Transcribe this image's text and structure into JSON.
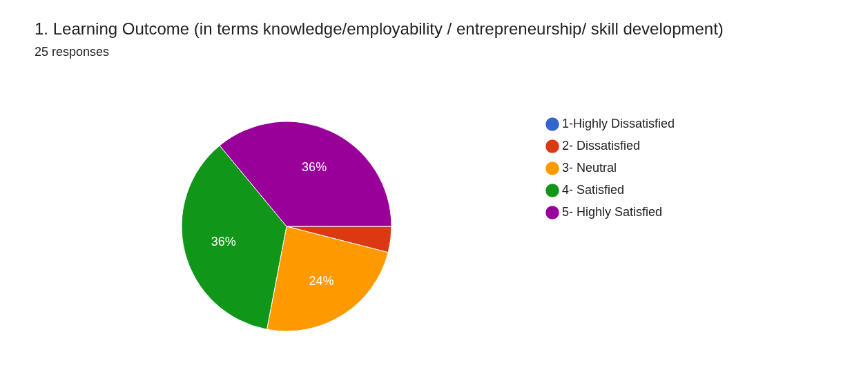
{
  "chart_data": {
    "type": "pie",
    "title": "1. Learning Outcome (in terms knowledge/employability / entrepreneurship/ skill development)",
    "subtitle": "25 responses",
    "categories": [
      "1-Highly Dissatisfied",
      "2- Dissatisfied",
      "3- Neutral",
      "4- Satisfied",
      "5- Highly Satisfied"
    ],
    "values": [
      0,
      4,
      24,
      36,
      36
    ],
    "colors": [
      "#3366cc",
      "#dc3912",
      "#ff9900",
      "#109618",
      "#990099"
    ],
    "value_labels": [
      null,
      null,
      "24%",
      "36%",
      "36%"
    ],
    "legend": "right"
  }
}
